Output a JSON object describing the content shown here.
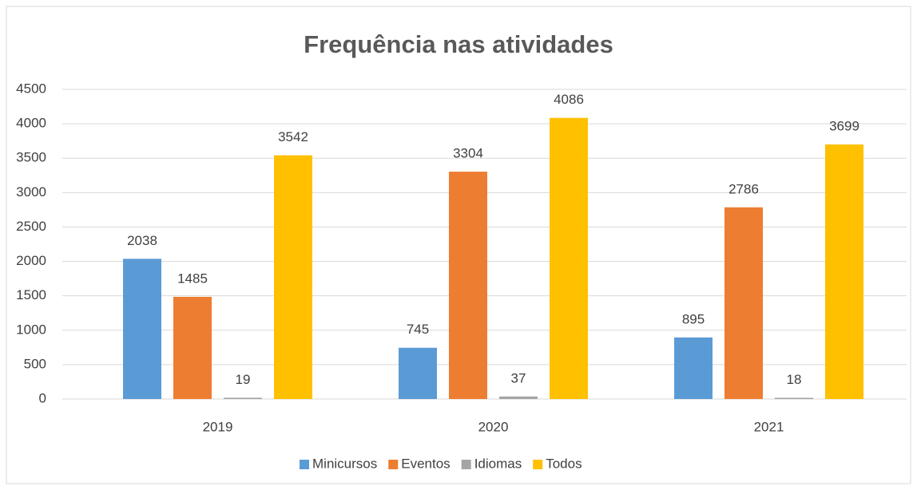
{
  "chart_data": {
    "type": "bar",
    "title": "Frequência nas atividades",
    "categories": [
      "2019",
      "2020",
      "2021"
    ],
    "series": [
      {
        "name": "Minicursos",
        "color": "#5b9bd5",
        "values": [
          2038,
          745,
          895
        ]
      },
      {
        "name": "Eventos",
        "color": "#ed7d31",
        "values": [
          1485,
          3304,
          2786
        ]
      },
      {
        "name": "Idiomas",
        "color": "#a5a5a5",
        "values": [
          19,
          37,
          18
        ]
      },
      {
        "name": "Todos",
        "color": "#ffc000",
        "values": [
          3542,
          4086,
          3699
        ]
      }
    ],
    "ylim": [
      0,
      4500
    ],
    "yticks": [
      0,
      500,
      1000,
      1500,
      2000,
      2500,
      3000,
      3500,
      4000,
      4500
    ],
    "grid": true,
    "legend": "bottom"
  }
}
